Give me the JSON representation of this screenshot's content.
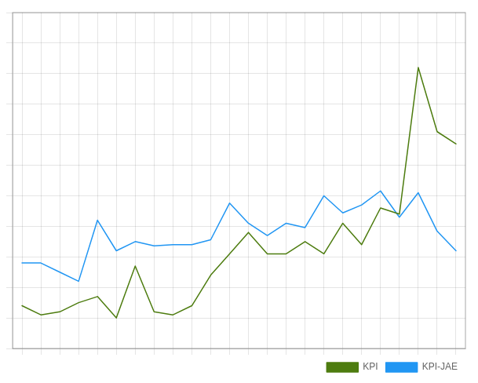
{
  "chart_data": {
    "type": "line",
    "x": [
      0,
      1,
      2,
      3,
      4,
      5,
      6,
      7,
      8,
      9,
      10,
      11,
      12,
      13,
      14,
      15,
      16,
      17,
      18,
      19,
      20,
      21,
      22,
      23
    ],
    "series": [
      {
        "name": "KPI",
        "color": "#4d7c0f",
        "values": [
          1.7,
          1.55,
          1.6,
          1.75,
          1.85,
          1.5,
          2.35,
          1.6,
          1.55,
          1.7,
          2.2,
          2.55,
          2.9,
          2.55,
          2.55,
          2.75,
          2.55,
          3.05,
          2.7,
          3.3,
          3.2,
          5.6,
          4.55,
          4.35
        ]
      },
      {
        "name": "KPI-JAE",
        "color": "#2196F3",
        "values": [
          2.4,
          2.4,
          2.25,
          2.1,
          3.1,
          2.6,
          2.75,
          2.68,
          2.7,
          2.7,
          2.78,
          3.38,
          3.05,
          2.85,
          3.05,
          2.98,
          3.5,
          3.22,
          3.35,
          3.58,
          3.15,
          3.55,
          2.92,
          2.6
        ]
      }
    ],
    "xlim": [
      -0.5,
      23.5
    ],
    "xticks": [
      0,
      1,
      2,
      3,
      4,
      5,
      6,
      7,
      8,
      9,
      10,
      11,
      12,
      13,
      14,
      15,
      16,
      17,
      18,
      19,
      20,
      21,
      22,
      23
    ],
    "ylim": [
      1.0,
      6.5
    ],
    "yticks": [
      1,
      1.5,
      2,
      2.5,
      3,
      3.5,
      4,
      4.5,
      5,
      5.5,
      6,
      6.5
    ],
    "grid": true,
    "legend": "lower right",
    "tick_labels": false
  }
}
